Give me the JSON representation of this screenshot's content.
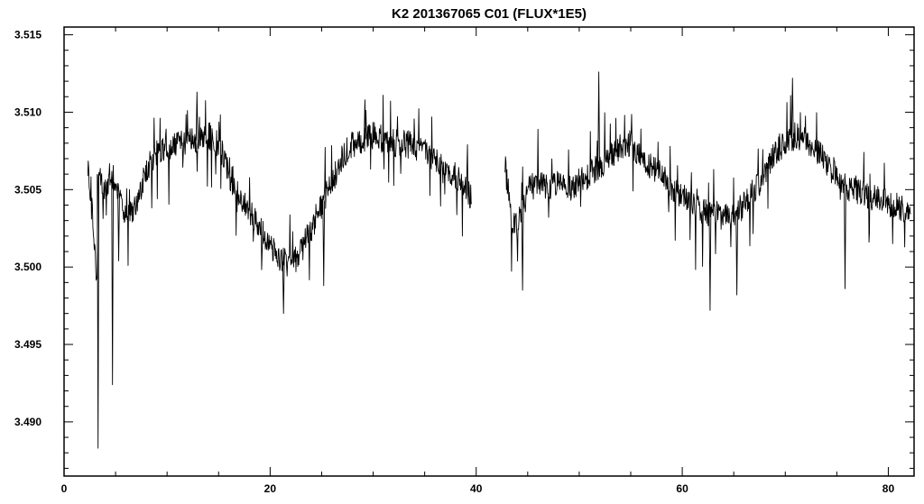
{
  "chart_data": {
    "type": "line",
    "title": "K2 201367065 C01 (FLUX*1E5)",
    "xlabel": "",
    "ylabel": "",
    "xlim": [
      0,
      82.5
    ],
    "ylim": [
      3.4865,
      3.5155
    ],
    "x_ticks": [
      0,
      20,
      40,
      60,
      80
    ],
    "x_tick_labels": [
      "0",
      "20",
      "40",
      "60",
      "80"
    ],
    "x_minor_step": 5,
    "y_ticks": [
      3.49,
      3.495,
      3.5,
      3.505,
      3.51,
      3.515
    ],
    "y_tick_labels": [
      "3.490",
      "3.495",
      "3.500",
      "3.505",
      "3.510",
      "3.515"
    ],
    "y_minor_step": 0.001,
    "grid": false,
    "legend": "none",
    "series": [
      {
        "color": "#000000",
        "segments": [
          {
            "x": [
              2.3,
              2.8,
              3.2,
              3.3,
              3.6,
              4.0,
              4.5,
              5.0,
              6.0,
              7.0,
              8.0,
              9.0,
              10.0,
              11.0,
              12.0,
              13.0,
              14.0,
              15.0,
              16.0,
              17.0,
              18.0,
              19.0,
              20.0,
              21.0,
              22.0,
              23.0,
              24.0,
              25.0,
              26.0,
              27.0,
              28.0,
              29.0,
              30.0,
              31.0,
              32.0,
              33.0,
              34.0,
              35.0,
              36.0,
              37.0,
              38.0,
              39.0,
              39.6
            ],
            "y": [
              3.5065,
              3.503,
              3.499,
              3.506,
              3.5058,
              3.505,
              3.506,
              3.5055,
              3.503,
              3.504,
              3.5062,
              3.5075,
              3.5078,
              3.508,
              3.508,
              3.5082,
              3.5085,
              3.508,
              3.506,
              3.5045,
              3.5035,
              3.5025,
              3.5015,
              3.5005,
              3.5,
              3.501,
              3.5025,
              3.504,
              3.5055,
              3.507,
              3.508,
              3.5082,
              3.5085,
              3.5082,
              3.508,
              3.508,
              3.5078,
              3.5075,
              3.507,
              3.506,
              3.506,
              3.505,
              3.5045
            ]
          },
          {
            "x": [
              42.8,
              43.5,
              44.0,
              45.0,
              46.0,
              47.0,
              48.0,
              49.0,
              50.0,
              51.0,
              52.0,
              53.0,
              54.0,
              55.0,
              56.0,
              57.0,
              58.0,
              59.0,
              60.0,
              61.0,
              62.0,
              63.0,
              64.0,
              65.0,
              66.0,
              67.0,
              68.0,
              69.0,
              70.0,
              71.0,
              72.0,
              73.0,
              74.0,
              75.0,
              76.0,
              77.0,
              78.0,
              79.0,
              80.0,
              81.0,
              82.2
            ],
            "y": [
              3.5065,
              3.503,
              3.5025,
              3.505,
              3.5055,
              3.5052,
              3.5055,
              3.505,
              3.5055,
              3.506,
              3.5065,
              3.5072,
              3.5078,
              3.508,
              3.5072,
              3.5065,
              3.506,
              3.505,
              3.5045,
              3.504,
              3.5035,
              3.5035,
              3.5032,
              3.5035,
              3.504,
              3.505,
              3.506,
              3.5075,
              3.508,
              3.5085,
              3.5082,
              3.5075,
              3.5068,
              3.506,
              3.505,
              3.505,
              3.5045,
              3.5045,
              3.504,
              3.504,
              3.503
            ]
          }
        ],
        "dips": [
          {
            "x": 3.3,
            "y": 3.4883
          },
          {
            "x": 4.7,
            "y": 3.4924
          },
          {
            "x": 5.3,
            "y": 3.5004
          },
          {
            "x": 21.3,
            "y": 3.497
          },
          {
            "x": 25.2,
            "y": 3.4988
          },
          {
            "x": 44.5,
            "y": 3.4985
          },
          {
            "x": 62.7,
            "y": 3.4972
          },
          {
            "x": 65.3,
            "y": 3.4982
          },
          {
            "x": 75.8,
            "y": 3.4986
          }
        ],
        "spikes": [
          {
            "x": 12.9,
            "y": 3.5113
          },
          {
            "x": 29.2,
            "y": 3.5108
          },
          {
            "x": 51.9,
            "y": 3.5126
          },
          {
            "x": 70.7,
            "y": 3.5122
          }
        ]
      }
    ]
  }
}
